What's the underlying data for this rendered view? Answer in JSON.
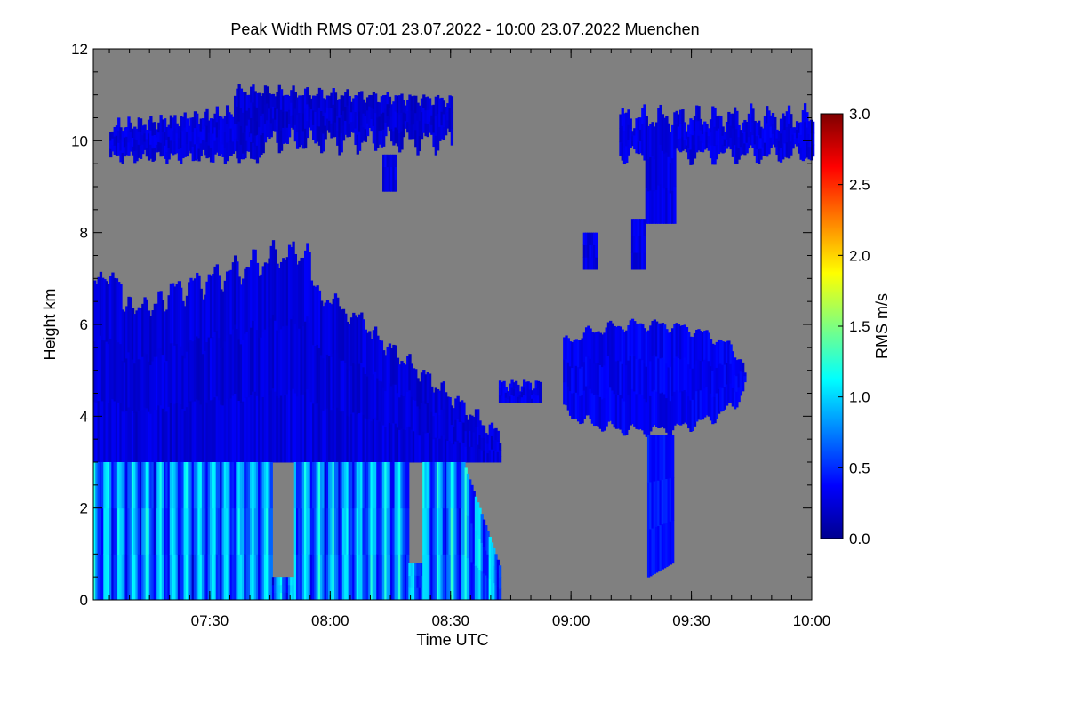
{
  "chart_data": {
    "type": "heatmap",
    "title": "Peak Width RMS   07:01 23.07.2022 - 10:00 23.07.2022 Muenchen",
    "xlabel": "Time UTC",
    "ylabel": "Height km",
    "colorbar_label": "RMS m/s",
    "x_range_minutes_utc": [
      421,
      600
    ],
    "x_ticks": [
      {
        "minutes": 450,
        "label": "07:30"
      },
      {
        "minutes": 480,
        "label": "08:00"
      },
      {
        "minutes": 510,
        "label": "08:30"
      },
      {
        "minutes": 540,
        "label": "09:00"
      },
      {
        "minutes": 570,
        "label": "09:30"
      },
      {
        "minutes": 600,
        "label": "10:00"
      }
    ],
    "y_range_km": [
      0,
      12
    ],
    "y_ticks": [
      0,
      2,
      4,
      6,
      8,
      10,
      12
    ],
    "colorbar_range": [
      0.0,
      3.0
    ],
    "colorbar_ticks": [
      "0.0",
      "0.5",
      "1.0",
      "1.5",
      "2.0",
      "2.5",
      "3.0"
    ],
    "colormap": "jet",
    "missing_color": "#808080",
    "regions": [
      {
        "name": "upper-cloud-west",
        "t": [
          421,
          463,
          463,
          420
        ],
        "h": [
          10.4,
          10.6,
          9.5,
          9.6
        ],
        "rms": 0.25
      },
      {
        "name": "upper-cloud-center",
        "t": [
          456,
          510,
          510,
          457
        ],
        "h": [
          11.3,
          11.0,
          10.0,
          9.8
        ],
        "rms": 0.25
      },
      {
        "name": "upper-cloud-east",
        "t": [
          551,
          600,
          600,
          557
        ],
        "h": [
          10.7,
          10.7,
          9.6,
          9.4
        ],
        "rms": 0.3
      },
      {
        "name": "mid-level-cloud",
        "t": [
          421,
          515,
          522,
          421
        ],
        "h": [
          7.2,
          7.8,
          3.1,
          3.0
        ],
        "rms": 0.3
      },
      {
        "name": "boundary-layer-plumes",
        "t": [
          421,
          522
        ],
        "h": [
          0,
          3.0
        ],
        "rms": 0.9
      },
      {
        "name": "altocumulus-east",
        "t": [
          538,
          583
        ],
        "h": [
          3.8,
          5.8
        ],
        "rms": 0.35
      },
      {
        "name": "virga-fall-streak",
        "t": [
          559,
          564
        ],
        "h": [
          0.5,
          3.6
        ],
        "rms": 0.4
      }
    ]
  }
}
